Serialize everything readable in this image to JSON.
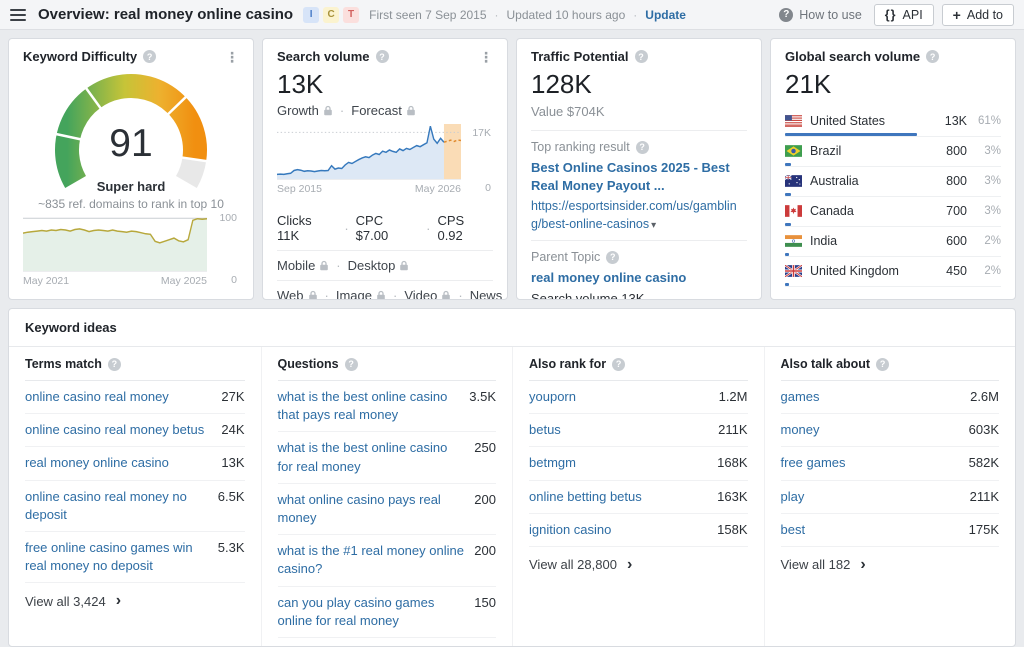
{
  "colors": {
    "link_blue": "#2e6da4",
    "country_bar_blue": "#3f76bd",
    "gauge_green": "#44a45c",
    "gauge_yellow": "#c6c438",
    "gauge_orange": "#f18f10",
    "gauge_rest": "#e8e8e8"
  },
  "header": {
    "title": "Overview: real money online casino",
    "badges": [
      {
        "label": "I",
        "bg": "#d7e4f8",
        "fg": "#4a7dc8"
      },
      {
        "label": "C",
        "bg": "#fbf3cf",
        "fg": "#a8923a"
      },
      {
        "label": "T",
        "bg": "#fbdfdd",
        "fg": "#d2605e"
      }
    ],
    "first_seen": "First seen 7 Sep 2015",
    "updated": "Updated 10 hours ago",
    "update_label": "Update",
    "how_to_use": "How to use",
    "api_icon": "{}",
    "api_label": "API",
    "add_to_icon": "+",
    "add_to_label": "Add to"
  },
  "cards": {
    "keyword_difficulty": {
      "title": "Keyword Difficulty",
      "score": "91",
      "score_value": 91,
      "level": "Super hard",
      "note": "~835 ref. domains to rank in top 10",
      "chart": {
        "type": "area",
        "values": [
          72,
          74,
          75,
          76,
          77,
          76,
          78,
          77,
          79,
          78,
          76,
          79,
          80,
          78,
          75,
          77,
          78,
          77,
          76,
          78,
          76,
          75,
          74,
          76,
          75,
          73,
          71,
          70,
          57,
          54,
          57,
          60,
          63,
          58,
          56,
          60,
          96,
          99,
          98,
          99
        ],
        "ymax": 104,
        "grid": 100,
        "grid_label": "100",
        "x_start": "May 2021",
        "x_end": "May 2025",
        "y_zero": "0",
        "line": "#b7a83c",
        "fill": "rgba(170,205,180,0.30)"
      }
    },
    "search_volume": {
      "title": "Search volume",
      "value": "13K",
      "locked_trends": [
        "Growth",
        "Forecast"
      ],
      "chart": {
        "type": "line",
        "unit": "K",
        "history": [
          2.0,
          2.1,
          2.0,
          2.2,
          2.4,
          3.4,
          3.7,
          3.5,
          3.1,
          3.3,
          3.2,
          3.0,
          3.2,
          3.4,
          3.3,
          3.4,
          5.1,
          3.9,
          4.3,
          4.1,
          5.4,
          6.3,
          5.9,
          6.6,
          7.3,
          7.9,
          8.3,
          8.0,
          8.9,
          9.5,
          9.1,
          10.3,
          9.9,
          10.7,
          10.2,
          9.9,
          11.1,
          10.5,
          11.3,
          10.9,
          11.6,
          12.3,
          11.9,
          12.6,
          13.3,
          19.2,
          14.6,
          13.1,
          14.9,
          13.5
        ],
        "forecast": [
          13.9,
          14.2,
          13.8,
          14.3,
          14.1
        ],
        "ymax": 20,
        "grid": 17,
        "grid_label": "17K",
        "x_start": "Sep 2015",
        "x_end": "May 2026",
        "y_zero": "0",
        "line": "#3679bd",
        "fill": "rgba(120,165,216,0.25)",
        "forecast_line": "#e08a2e",
        "forecast_fill": "rgba(243,178,94,0.45)"
      },
      "clicks_bar": [
        {
          "color": "#3d9c5f",
          "width": 54
        },
        {
          "color": "#e3c93c",
          "width": 3
        },
        {
          "color": "#e8862c",
          "width": 4
        },
        {
          "color": "#e8eaec",
          "width": 39
        }
      ],
      "metrics": [
        "Clicks 11K",
        "CPC $7.00",
        "CPS 0.92"
      ],
      "locked_devices": [
        "Mobile",
        "Desktop"
      ],
      "locked_serp": [
        "Web",
        "Image",
        "Video",
        "News"
      ]
    },
    "traffic_potential": {
      "title": "Traffic Potential",
      "value": "128K",
      "value_note": "Value $704K",
      "top_ranking_label": "Top ranking result",
      "top_result_title": "Best Online Casinos 2025 - Best Real Money Payout ...",
      "top_result_url": "https://esportsinsider.com/us/gambling/best-online-casinos",
      "parent_topic_label": "Parent Topic",
      "parent_topic": "real money online casino",
      "parent_topic_volume": "Search volume 13K"
    },
    "global_search_volume": {
      "title": "Global search volume",
      "value": "21K",
      "countries": [
        {
          "name": "United States",
          "flag": "us",
          "volume": "13K",
          "percent": "61%",
          "bar": 61
        },
        {
          "name": "Brazil",
          "flag": "br",
          "volume": "800",
          "percent": "3%",
          "bar": 3
        },
        {
          "name": "Australia",
          "flag": "au",
          "volume": "800",
          "percent": "3%",
          "bar": 3
        },
        {
          "name": "Canada",
          "flag": "ca",
          "volume": "700",
          "percent": "3%",
          "bar": 3
        },
        {
          "name": "India",
          "flag": "in",
          "volume": "600",
          "percent": "2%",
          "bar": 2
        },
        {
          "name": "United Kingdom",
          "flag": "gb",
          "volume": "450",
          "percent": "2%",
          "bar": 2
        }
      ]
    }
  },
  "keyword_ideas": {
    "title": "Keyword ideas",
    "columns": [
      {
        "header": "Terms match",
        "view_all": "View all 3,424",
        "rows": [
          {
            "keyword": "online casino real money",
            "volume": "27K"
          },
          {
            "keyword": "online casino real money betus",
            "volume": "24K"
          },
          {
            "keyword": "real money online casino",
            "volume": "13K"
          },
          {
            "keyword": "online casino real money no deposit",
            "volume": "6.5K"
          },
          {
            "keyword": "free online casino games win real money no deposit",
            "volume": "5.3K"
          }
        ]
      },
      {
        "header": "Questions",
        "view_all": null,
        "rows": [
          {
            "keyword": "what is the best online casino that pays real money",
            "volume": "3.5K"
          },
          {
            "keyword": "what is the best online casino for real money",
            "volume": "250"
          },
          {
            "keyword": "what online casino pays real money",
            "volume": "200"
          },
          {
            "keyword": "what is the #1 real money online casino?",
            "volume": "200"
          },
          {
            "keyword": "can you play casino games online for real money",
            "volume": "150"
          }
        ]
      },
      {
        "header": "Also rank for",
        "view_all": "View all 28,800",
        "rows": [
          {
            "keyword": "youporn",
            "volume": "1.2M"
          },
          {
            "keyword": "betus",
            "volume": "211K"
          },
          {
            "keyword": "betmgm",
            "volume": "168K"
          },
          {
            "keyword": "online betting betus",
            "volume": "163K"
          },
          {
            "keyword": "ignition casino",
            "volume": "158K"
          }
        ]
      },
      {
        "header": "Also talk about",
        "view_all": "View all 182",
        "rows": [
          {
            "keyword": "games",
            "volume": "2.6M"
          },
          {
            "keyword": "money",
            "volume": "603K"
          },
          {
            "keyword": "free games",
            "volume": "582K"
          },
          {
            "keyword": "play",
            "volume": "211K"
          },
          {
            "keyword": "best",
            "volume": "175K"
          }
        ]
      }
    ]
  }
}
